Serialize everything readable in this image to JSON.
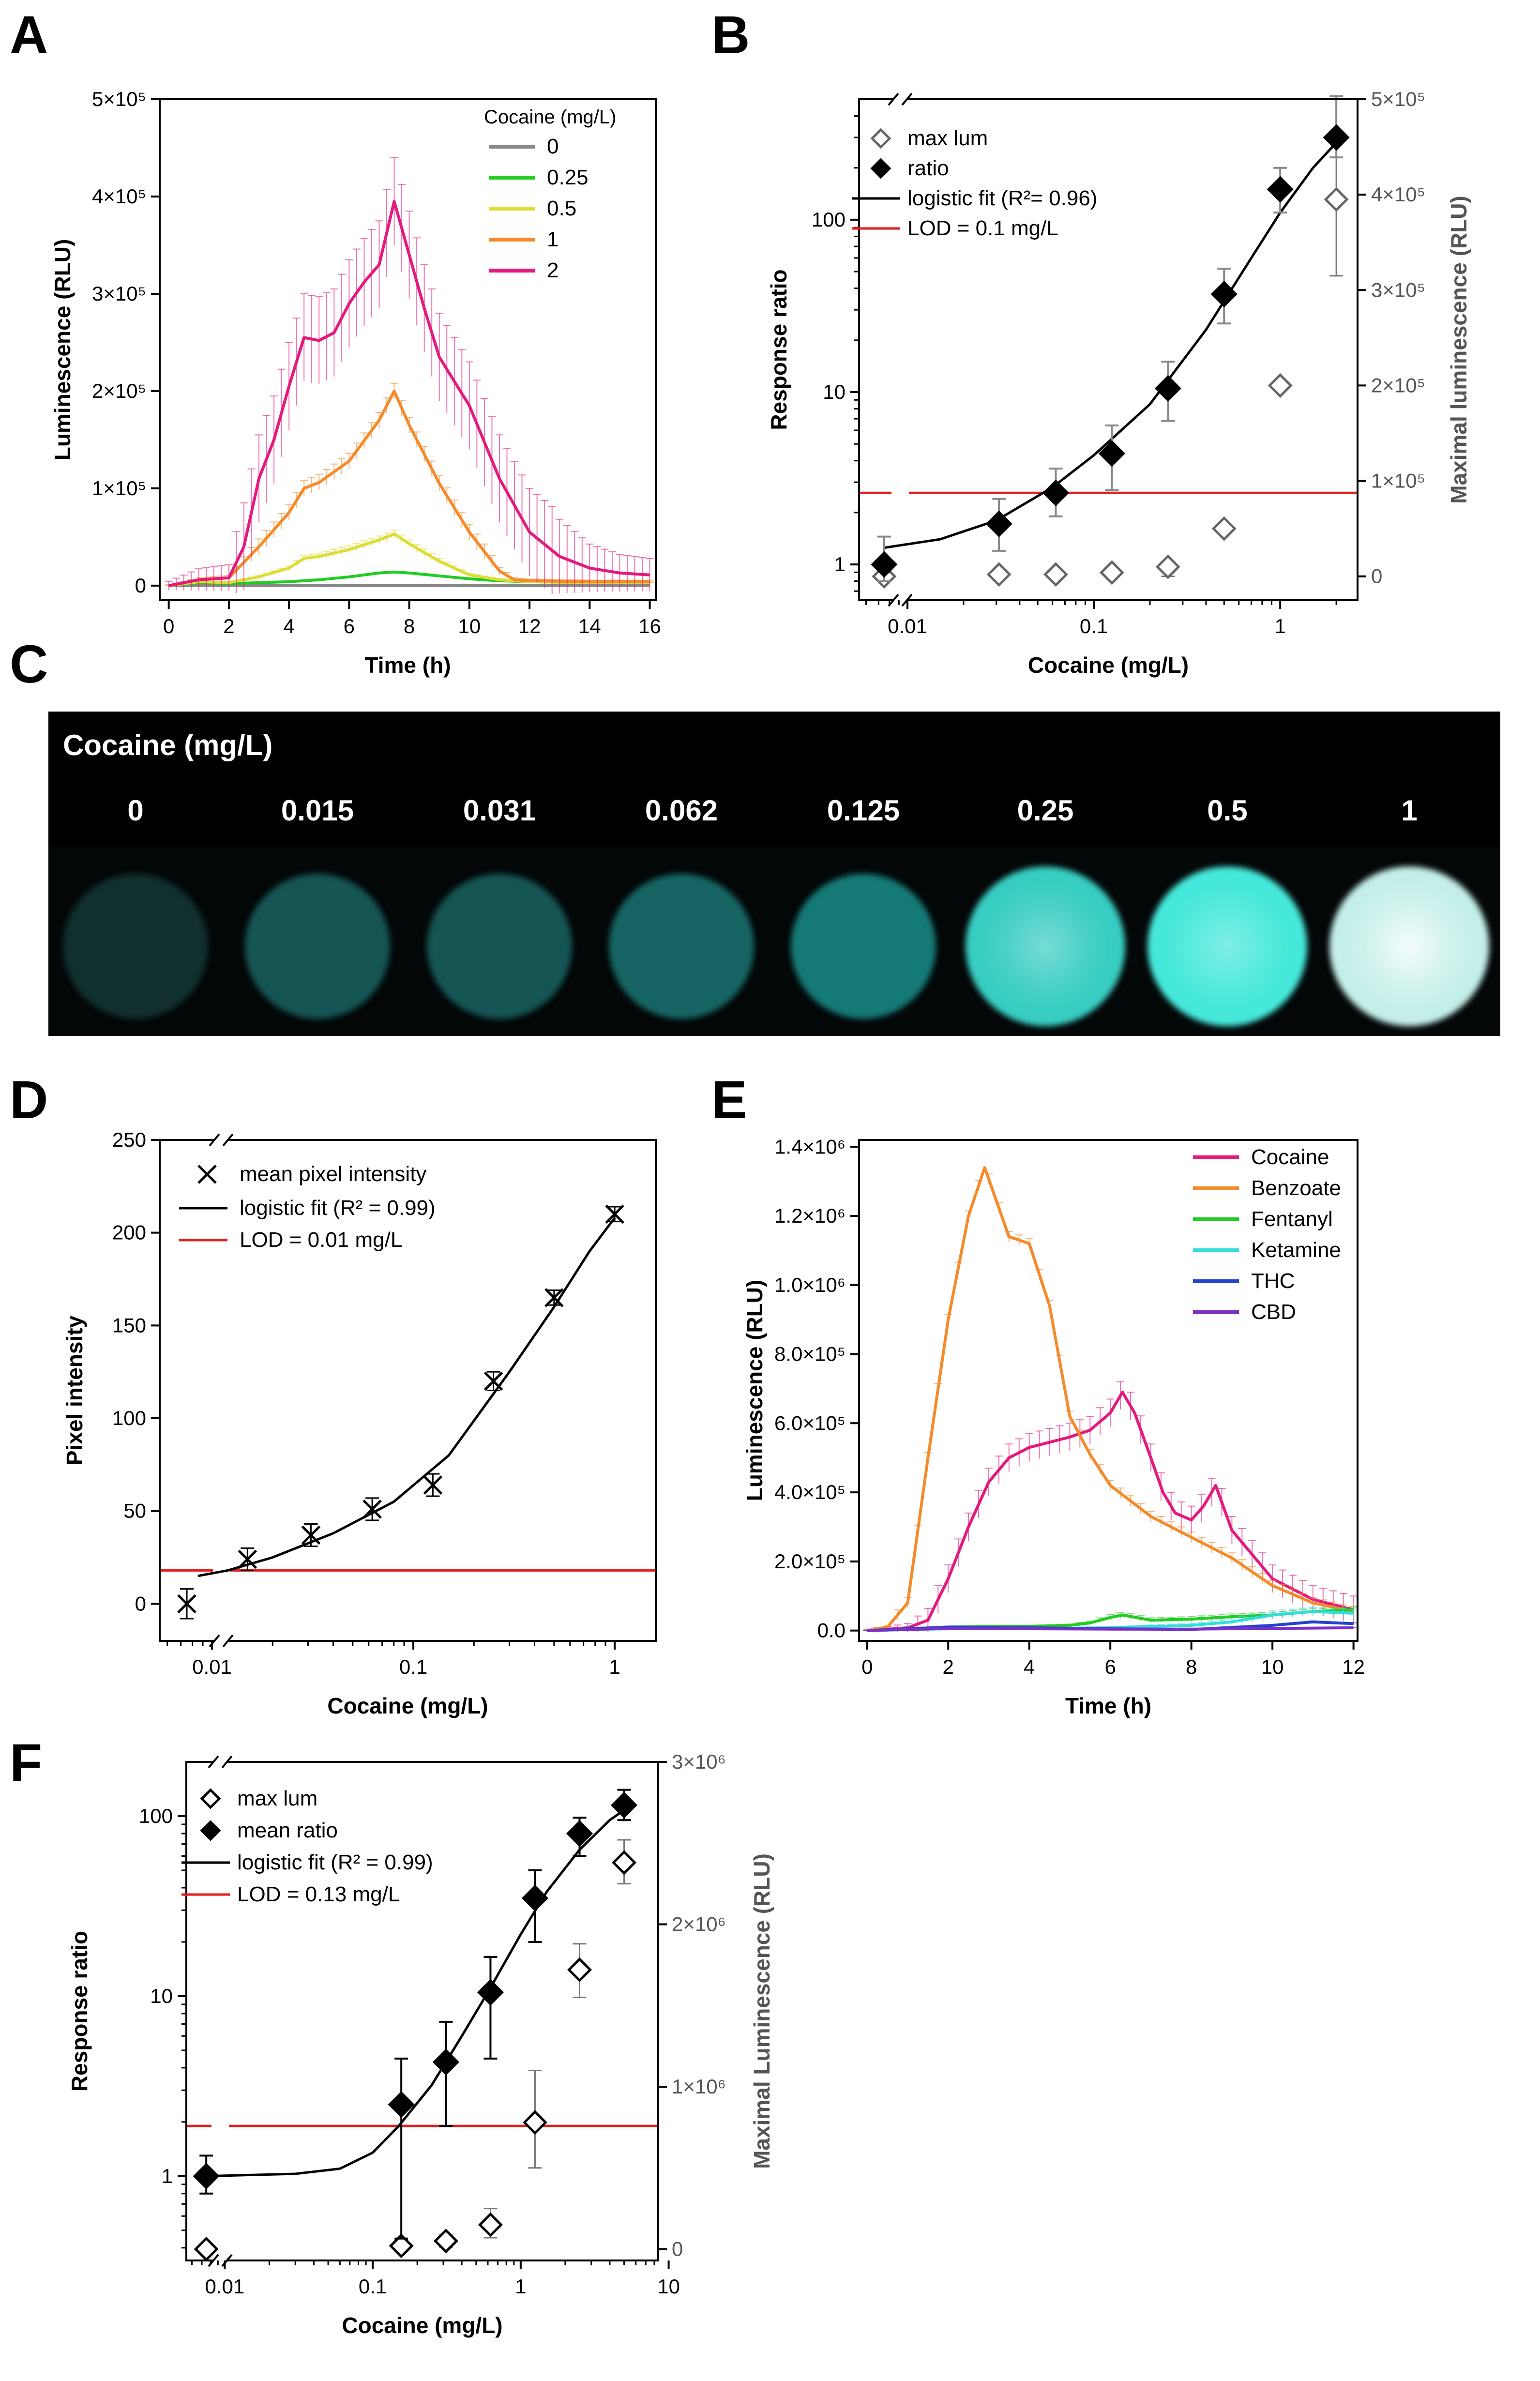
{
  "panels": {
    "a": "A",
    "b": "B",
    "c": "C",
    "d": "D",
    "e": "E",
    "f": "F"
  },
  "chart_data": [
    {
      "id": "A",
      "type": "line",
      "xlabel": "Time (h)",
      "ylabel": "Luminescence (RLU)",
      "xlim": [
        -0.3,
        16.2
      ],
      "ylim": [
        -15000,
        500000
      ],
      "xticks": [
        0,
        2,
        4,
        6,
        8,
        10,
        12,
        14,
        16
      ],
      "yticks": [
        {
          "v": 0,
          "label": "0"
        },
        {
          "v": 100000,
          "label": "1×10⁵"
        },
        {
          "v": 200000,
          "label": "2×10⁵"
        },
        {
          "v": 300000,
          "label": "3×10⁵"
        },
        {
          "v": 400000,
          "label": "4×10⁵"
        },
        {
          "v": 500000,
          "label": "5×10⁵"
        }
      ],
      "legend_title": "Cocaine (mg/L)",
      "series": [
        {
          "name": "0",
          "color": "#888888",
          "x": [
            0,
            2,
            4,
            6,
            8,
            10,
            12,
            14,
            16
          ],
          "y": [
            0,
            0,
            0,
            0,
            0,
            0,
            0,
            0,
            0
          ],
          "err": 0
        },
        {
          "name": "0.25",
          "color": "#22cc22",
          "x": [
            0,
            1,
            2,
            3,
            4,
            5,
            6,
            7,
            7.5,
            8,
            9,
            10,
            11,
            12,
            14,
            16
          ],
          "y": [
            0,
            3000,
            2000,
            3000,
            4000,
            6000,
            9000,
            13000,
            14000,
            13000,
            10000,
            7000,
            5000,
            4000,
            3000,
            3000
          ],
          "err": 1500
        },
        {
          "name": "0.5",
          "color": "#dddd33",
          "x": [
            0,
            1,
            2,
            3,
            4,
            4.5,
            5,
            6,
            7,
            7.5,
            8,
            9,
            10,
            11,
            12,
            14,
            16
          ],
          "y": [
            0,
            4000,
            3000,
            9000,
            18000,
            28000,
            30000,
            37000,
            47000,
            53000,
            43000,
            25000,
            11000,
            6000,
            4000,
            3000,
            3000
          ],
          "err": 4000
        },
        {
          "name": "1",
          "color": "#f58a2a",
          "x": [
            0,
            1,
            2,
            3,
            4,
            4.5,
            5,
            6,
            7,
            7.5,
            8,
            9,
            10,
            11,
            11.5,
            12,
            14,
            16
          ],
          "y": [
            0,
            6000,
            8000,
            40000,
            75000,
            100000,
            106000,
            128000,
            170000,
            200000,
            165000,
            105000,
            55000,
            15000,
            6000,
            5000,
            4000,
            4000
          ],
          "err": 8000
        },
        {
          "name": "2",
          "color": "#e4197e",
          "x": [
            0,
            1,
            2,
            2.5,
            3,
            3.5,
            4,
            4.5,
            5,
            5.5,
            6,
            6.5,
            7,
            7.5,
            8,
            8.5,
            9,
            10,
            11,
            12,
            13,
            14,
            15,
            16
          ],
          "y": [
            0,
            6000,
            8000,
            40000,
            110000,
            150000,
            205000,
            255000,
            252000,
            260000,
            290000,
            312000,
            330000,
            395000,
            340000,
            285000,
            235000,
            185000,
            110000,
            55000,
            30000,
            18000,
            13000,
            11000
          ],
          "err": 45000
        }
      ]
    },
    {
      "id": "B",
      "type": "scatter",
      "xlabel": "Cocaine (mg/L)",
      "ylabel": "Response ratio",
      "y2label": "Maximal luminescence (RLU)",
      "xscale": "log",
      "yscale": "log",
      "xlim": [
        0.0055,
        2.6
      ],
      "ylim": [
        0.62,
        500
      ],
      "y2lim": [
        -25000,
        500000
      ],
      "xticks": [
        {
          "v": 0.01,
          "label": "0.01"
        },
        {
          "v": 0.1,
          "label": "0.1"
        },
        {
          "v": 1,
          "label": "1"
        }
      ],
      "yticks": [
        {
          "v": 1,
          "label": "1"
        },
        {
          "v": 10,
          "label": "10"
        },
        {
          "v": 100,
          "label": "100"
        }
      ],
      "y2ticks": [
        {
          "v": 0,
          "label": "0"
        },
        {
          "v": 100000,
          "label": "1×10⁵"
        },
        {
          "v": 200000,
          "label": "2×10⁵"
        },
        {
          "v": 300000,
          "label": "3×10⁵"
        },
        {
          "v": 400000,
          "label": "4×10⁵"
        },
        {
          "v": 500000,
          "label": "5×10⁵"
        }
      ],
      "legend": [
        "max lum",
        "ratio",
        "logistic fit (R²= 0.96)",
        "LOD = 0.1 mg/L"
      ],
      "ratio": {
        "x": [
          0.0075,
          0.031,
          0.0625,
          0.125,
          0.25,
          0.5,
          1,
          2
        ],
        "y": [
          1,
          1.72,
          2.6,
          4.4,
          10.5,
          37,
          150,
          300
        ],
        "lo": [
          0.8,
          1.2,
          1.9,
          2.7,
          6.8,
          25,
          110,
          230
        ],
        "hi": [
          1.45,
          2.4,
          3.6,
          6.4,
          15,
          52,
          200,
          520
        ]
      },
      "maxlum": {
        "x": [
          0.0075,
          0.031,
          0.0625,
          0.125,
          0.25,
          0.5,
          1,
          2
        ],
        "y": [
          0,
          2000,
          2000,
          4000,
          10000,
          50000,
          200000,
          395000
        ],
        "lo": [
          0,
          0,
          0,
          0,
          0,
          45000,
          195000,
          315000
        ],
        "hi": [
          0,
          4000,
          4000,
          8000,
          15000,
          55000,
          205000,
          460000
        ]
      },
      "fit": {
        "x": [
          0.0075,
          0.015,
          0.03,
          0.06,
          0.1,
          0.2,
          0.4,
          0.7,
          1,
          1.5,
          2
        ],
        "y": [
          1.25,
          1.4,
          1.8,
          2.8,
          4.3,
          8.5,
          23,
          60,
          110,
          200,
          280
        ]
      },
      "lod": 2.6
    },
    {
      "id": "D",
      "type": "scatter",
      "xlabel": "Cocaine (mg/L)",
      "ylabel": "Pixel intensity",
      "xscale": "log",
      "xlim": [
        0.0055,
        1.6
      ],
      "ylim": [
        -20,
        250
      ],
      "xticks": [
        {
          "v": 0.01,
          "label": "0.01"
        },
        {
          "v": 0.1,
          "label": "0.1"
        },
        {
          "v": 1,
          "label": "1"
        }
      ],
      "yticks": [
        0,
        50,
        100,
        150,
        200,
        250
      ],
      "legend": [
        "mean pixel intensity",
        "logistic fit (R² = 0.99)",
        "LOD = 0.01 mg/L"
      ],
      "points": {
        "x": [
          0.0075,
          0.015,
          0.031,
          0.0625,
          0.125,
          0.25,
          0.5,
          1
        ],
        "y": [
          0,
          24,
          37,
          51,
          64,
          120,
          165,
          210
        ],
        "err": [
          8,
          6,
          6,
          6,
          6,
          5,
          4,
          4
        ]
      },
      "fit": {
        "x": [
          0.0085,
          0.012,
          0.02,
          0.04,
          0.08,
          0.15,
          0.3,
          0.5,
          0.75,
          1
        ],
        "y": [
          15,
          18,
          25,
          38,
          55,
          80,
          125,
          160,
          190,
          208
        ]
      },
      "lod": 18
    },
    {
      "id": "E",
      "type": "line",
      "xlabel": "Time (h)",
      "ylabel": "Luminescence (RLU)",
      "xlim": [
        -0.2,
        12.1
      ],
      "ylim": [
        -30000,
        1420000
      ],
      "xticks": [
        0,
        2,
        4,
        6,
        8,
        10,
        12
      ],
      "yticks": [
        {
          "v": 0,
          "label": "0.0"
        },
        {
          "v": 200000,
          "label": "2.0×10⁵"
        },
        {
          "v": 400000,
          "label": "4.0×10⁵"
        },
        {
          "v": 600000,
          "label": "6.0×10⁵"
        },
        {
          "v": 800000,
          "label": "8.0×10⁵"
        },
        {
          "v": 1000000,
          "label": "1.0×10⁶"
        },
        {
          "v": 1200000,
          "label": "1.2×10⁶"
        },
        {
          "v": 1400000,
          "label": "1.4×10⁶"
        }
      ],
      "series": [
        {
          "name": "Cocaine",
          "color": "#e4197e",
          "x": [
            0,
            1,
            1.5,
            2,
            2.5,
            3,
            3.5,
            4,
            4.5,
            5,
            5.5,
            6,
            6.3,
            6.6,
            7,
            7.3,
            7.6,
            8,
            8.3,
            8.6,
            9,
            10,
            11,
            12
          ],
          "y": [
            0,
            8000,
            30000,
            150000,
            300000,
            430000,
            500000,
            530000,
            545000,
            560000,
            580000,
            630000,
            690000,
            630000,
            500000,
            400000,
            340000,
            320000,
            360000,
            420000,
            290000,
            150000,
            90000,
            60000
          ],
          "err": 40000
        },
        {
          "name": "Benzoate",
          "color": "#f58a2a",
          "x": [
            0,
            0.5,
            1,
            1.5,
            2,
            2.5,
            2.9,
            3.2,
            3.5,
            4,
            4.5,
            5,
            5.5,
            6,
            7,
            8,
            9,
            10,
            11,
            12
          ],
          "y": [
            0,
            10000,
            80000,
            500000,
            900000,
            1200000,
            1340000,
            1240000,
            1140000,
            1120000,
            940000,
            620000,
            510000,
            420000,
            330000,
            270000,
            210000,
            130000,
            80000,
            55000
          ],
          "err": 15000
        },
        {
          "name": "Fentanyl",
          "color": "#22cc22",
          "x": [
            0,
            1,
            2,
            3,
            4,
            5,
            5.5,
            6,
            6.3,
            7,
            8,
            9,
            10,
            11,
            12
          ],
          "y": [
            0,
            5000,
            10000,
            12000,
            12000,
            15000,
            22000,
            38000,
            45000,
            30000,
            33000,
            40000,
            45000,
            55000,
            60000
          ],
          "err": 8000
        },
        {
          "name": "Ketamine",
          "color": "#33dddd",
          "x": [
            0,
            2,
            4,
            6,
            8,
            9,
            10,
            11,
            12
          ],
          "y": [
            0,
            5000,
            5000,
            8000,
            15000,
            25000,
            45000,
            55000,
            50000
          ],
          "err": 12000
        },
        {
          "name": "THC",
          "color": "#2244cc",
          "x": [
            0,
            2,
            4,
            6,
            8,
            10,
            11,
            12
          ],
          "y": [
            0,
            10000,
            8000,
            5000,
            3000,
            15000,
            25000,
            20000
          ],
          "err": 4000
        },
        {
          "name": "CBD",
          "color": "#7b2fc9",
          "x": [
            0,
            2,
            4,
            6,
            8,
            10,
            12
          ],
          "y": [
            0,
            6000,
            5000,
            4000,
            4000,
            6000,
            8000
          ],
          "err": 3000
        }
      ]
    },
    {
      "id": "F",
      "type": "scatter",
      "xlabel": "Cocaine (mg/L)",
      "ylabel": "Response ratio",
      "y2label": "Maximal Luminescence (RLU)",
      "xscale": "log",
      "yscale": "log",
      "xlim": [
        0.0055,
        8.5
      ],
      "ylim": [
        0.34,
        200
      ],
      "y2lim": [
        -70000,
        3000000
      ],
      "xticks": [
        {
          "v": 0.01,
          "label": "0.01"
        },
        {
          "v": 0.1,
          "label": "0.1"
        },
        {
          "v": 1,
          "label": "1"
        },
        {
          "v": 10,
          "label": "10"
        }
      ],
      "yticks": [
        {
          "v": 1,
          "label": "1"
        },
        {
          "v": 10,
          "label": "10"
        },
        {
          "v": 100,
          "label": "100"
        }
      ],
      "y2ticks": [
        {
          "v": 0,
          "label": "0"
        },
        {
          "v": 1000000,
          "label": "1×10⁶"
        },
        {
          "v": 2000000,
          "label": "2×10⁶"
        },
        {
          "v": 3000000,
          "label": "3×10⁶"
        }
      ],
      "legend": [
        "max lum",
        "mean ratio",
        "logistic fit (R² = 0.99)",
        "LOD = 0.13 mg/L"
      ],
      "ratio": {
        "x": [
          0.0075,
          0.156,
          0.3125,
          0.625,
          1.25,
          2.5,
          5
        ],
        "y": [
          1,
          2.5,
          4.3,
          10.5,
          35,
          80,
          115
        ],
        "lo": [
          0.8,
          0.45,
          1.9,
          4.5,
          20,
          60,
          95
        ],
        "hi": [
          1.3,
          4.5,
          7.2,
          16.5,
          50,
          98,
          140
        ]
      },
      "maxlum": {
        "x": [
          0.0075,
          0.156,
          0.3125,
          0.625,
          1.25,
          2.5,
          5
        ],
        "y": [
          0,
          20000,
          50000,
          150000,
          780000,
          1720000,
          2380000
        ],
        "lo": [
          -10000,
          5000,
          10000,
          70000,
          500000,
          1550000,
          2250000
        ],
        "hi": [
          10000,
          35000,
          90000,
          250000,
          1100000,
          1880000,
          2520000
        ]
      },
      "fit": {
        "x": [
          0.0075,
          0.03,
          0.06,
          0.1,
          0.15,
          0.25,
          0.4,
          0.6,
          1,
          1.5,
          2.5,
          4,
          5
        ],
        "y": [
          1,
          1.03,
          1.1,
          1.35,
          1.9,
          3.2,
          6,
          10.5,
          22,
          38,
          65,
          95,
          108
        ]
      },
      "lod": 1.9
    }
  ],
  "photo": {
    "title": "Cocaine (mg/L)",
    "labels": [
      "0",
      "0.015",
      "0.031",
      "0.062",
      "0.125",
      "0.25",
      "0.5",
      "1"
    ],
    "glow_colors": [
      "#12403e",
      "#125a58",
      "#125a58",
      "#146a68",
      "#18807c",
      "#3ad8cc",
      "#49f5e6",
      "#cffcf6"
    ]
  }
}
